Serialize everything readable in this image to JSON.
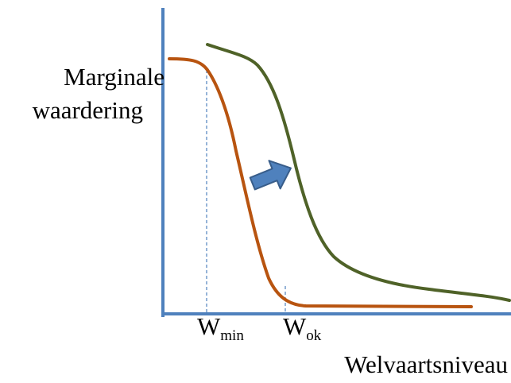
{
  "diagram": {
    "ylabel_line1": "Marginale",
    "ylabel_line2": "waardering",
    "xlabel": "Welvaartsniveau",
    "w_min": {
      "main": "W",
      "sub": "min"
    },
    "w_ok": {
      "main": "W",
      "sub": "ok"
    },
    "colors": {
      "axes": "#4f81bd",
      "curve_before": "#b85410",
      "curve_after": "#4f6228",
      "arrow_fill": "#4f81bd",
      "arrow_stroke": "#385d8a",
      "marker_lines": "#4f81bd"
    },
    "icons": {
      "shift_arrow": "right-arrow-icon"
    }
  }
}
